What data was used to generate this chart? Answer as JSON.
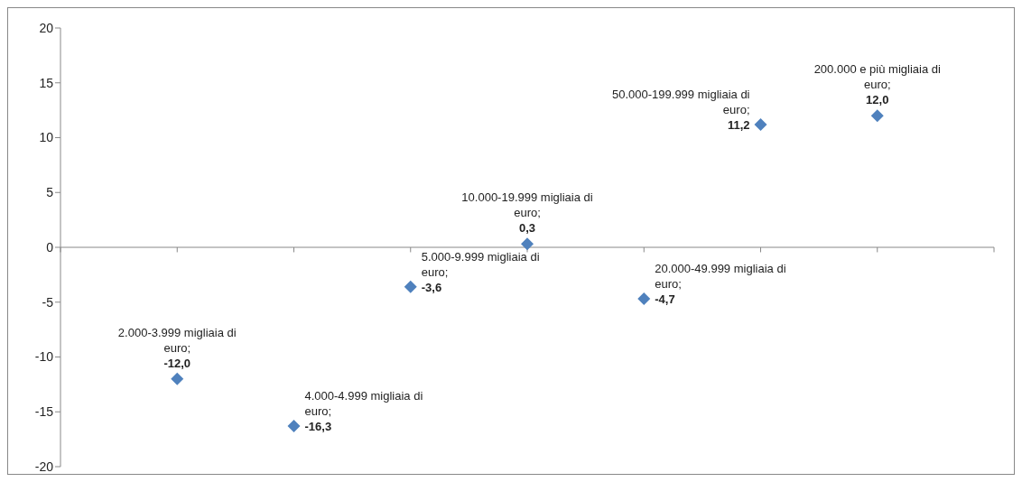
{
  "chart_data": {
    "type": "scatter",
    "categories": [
      null,
      null,
      null,
      null,
      null,
      null,
      null
    ],
    "values": [
      -12.0,
      -16.3,
      -3.6,
      0.3,
      -4.7,
      11.2,
      12.0
    ],
    "value_labels": [
      "-12,0",
      "-16,3",
      "-3,6",
      "0,3",
      "-4,7",
      "11,2",
      "12,0"
    ],
    "annotations": [
      "2.000-3.999 migliaia di euro;",
      "4.000-4.999 migliaia di euro;",
      "5.000-9.999 migliaia di euro;",
      "10.000-19.999 migliaia di euro;",
      "20.000-49.999 migliaia di euro;",
      "50.000-199.999 migliaia di euro;",
      "200.000 e più migliaia di euro;"
    ],
    "color": "#4f81bd",
    "marker": "diamond",
    "ylim": [
      -20,
      20
    ],
    "yticks": [
      -20,
      -15,
      -10,
      -5,
      0,
      5,
      10,
      15,
      20
    ],
    "tick_labels": "y"
  }
}
